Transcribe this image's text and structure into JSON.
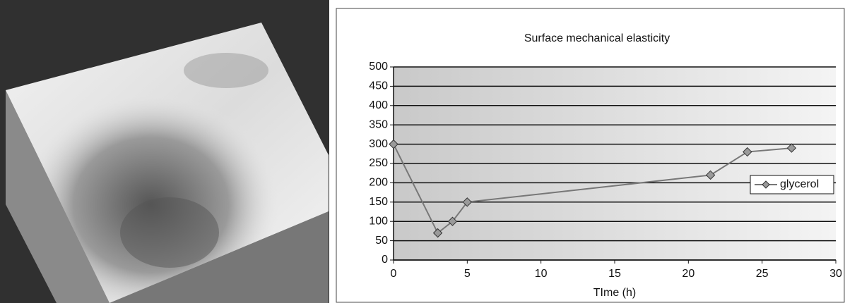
{
  "chart_data": {
    "type": "line",
    "title": "Surface mechanical elasticity",
    "x_label": "TIme (h)",
    "x": [
      0,
      3,
      4,
      5,
      21.5,
      24,
      27
    ],
    "series": [
      {
        "name": "glycerol",
        "color": "#777777",
        "values": [
          300,
          70,
          100,
          150,
          220,
          280,
          290
        ]
      }
    ],
    "xlim": [
      0,
      30
    ],
    "xticks": [
      0,
      5,
      10,
      15,
      20,
      25,
      30
    ],
    "ylim": [
      0,
      500
    ],
    "yticks": [
      0,
      50,
      100,
      150,
      200,
      250,
      300,
      350,
      400,
      450,
      500
    ],
    "grid": true,
    "legend": "right"
  }
}
